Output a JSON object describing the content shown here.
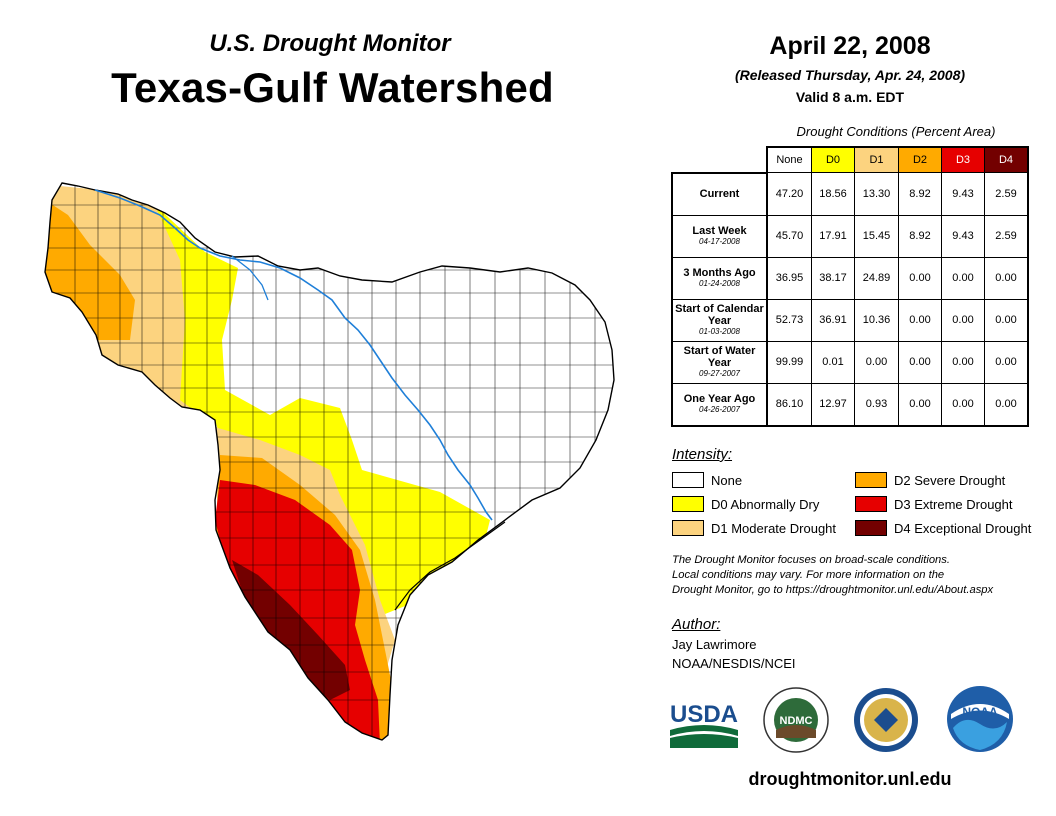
{
  "header": {
    "subtitle": "U.S. Drought Monitor",
    "title": "Texas-Gulf Watershed",
    "date": "April 22, 2008",
    "released": "(Released Thursday, Apr. 24, 2008)",
    "valid": "Valid 8 a.m. EDT"
  },
  "table": {
    "caption": "Drought Conditions (Percent Area)",
    "columns": [
      "None",
      "D0",
      "D1",
      "D2",
      "D3",
      "D4"
    ],
    "rows": [
      {
        "label": "Current",
        "date": "",
        "values": [
          "47.20",
          "18.56",
          "13.30",
          "8.92",
          "9.43",
          "2.59"
        ]
      },
      {
        "label": "Last Week",
        "date": "04-17-2008",
        "values": [
          "45.70",
          "17.91",
          "15.45",
          "8.92",
          "9.43",
          "2.59"
        ]
      },
      {
        "label": "3 Months Ago",
        "date": "01-24-2008",
        "values": [
          "36.95",
          "38.17",
          "24.89",
          "0.00",
          "0.00",
          "0.00"
        ]
      },
      {
        "label": "Start of Calendar Year",
        "date": "01-03-2008",
        "values": [
          "52.73",
          "36.91",
          "10.36",
          "0.00",
          "0.00",
          "0.00"
        ]
      },
      {
        "label": "Start of Water Year",
        "date": "09-27-2007",
        "values": [
          "99.99",
          "0.01",
          "0.00",
          "0.00",
          "0.00",
          "0.00"
        ]
      },
      {
        "label": "One Year Ago",
        "date": "04-26-2007",
        "values": [
          "86.10",
          "12.97",
          "0.93",
          "0.00",
          "0.00",
          "0.00"
        ]
      }
    ]
  },
  "legend": {
    "title": "Intensity:",
    "items": [
      {
        "label": "None",
        "color": "#ffffff"
      },
      {
        "label": "D0 Abnormally Dry",
        "color": "#ffff00"
      },
      {
        "label": "D1 Moderate Drought",
        "color": "#fcd37f"
      },
      {
        "label": "D2 Severe Drought",
        "color": "#ffaa00"
      },
      {
        "label": "D3 Extreme Drought",
        "color": "#e60000"
      },
      {
        "label": "D4 Exceptional Drought",
        "color": "#730000"
      }
    ]
  },
  "note": {
    "line1": "The Drought Monitor focuses on broad-scale conditions.",
    "line2": "Local conditions may vary. For more information on the",
    "line3": "Drought Monitor, go to https://droughtmonitor.unl.edu/About.aspx"
  },
  "author": {
    "label": "Author:",
    "name": "Jay Lawrimore",
    "org": "NOAA/NESDIS/NCEI"
  },
  "logos": {
    "usda": "USDA",
    "ndmc": "NDMC",
    "noaa": "NOAA"
  },
  "footer": {
    "site": "droughtmonitor.unl.edu"
  }
}
